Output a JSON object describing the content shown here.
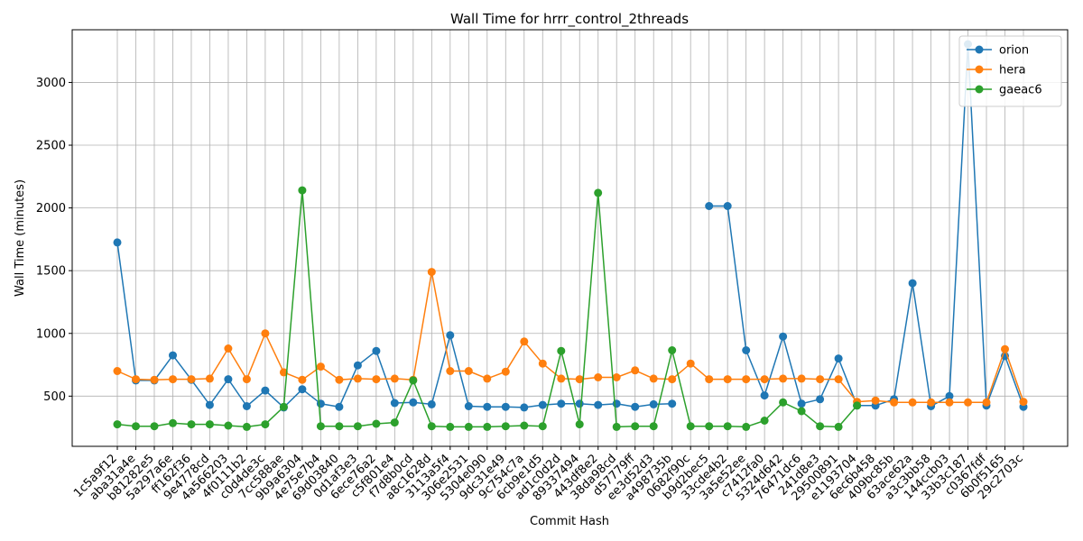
{
  "chart_data": {
    "type": "line",
    "title": "Wall Time for hrrr_control_2threads",
    "xlabel": "Commit Hash",
    "ylabel": "Wall Time (minutes)",
    "ylim": [
      100,
      3420
    ],
    "yticks": [
      500,
      1000,
      1500,
      2000,
      2500,
      3000
    ],
    "grid": true,
    "legend_position": "top-right",
    "categories": [
      "1c5a9f12",
      "aba31a4e",
      "b81282e5",
      "5a297a6e",
      "ff162f36",
      "9e4778cd",
      "4a566203",
      "4f0111b2",
      "c0d4de3c",
      "7cc588ae",
      "9b9a6304",
      "4e75e7b4",
      "69d03840",
      "0d1af3e3",
      "6ece76a2",
      "c5f801e4",
      "f7d8b0cd",
      "a8c1628d",
      "3113a5f4",
      "306e2531",
      "5304e090",
      "9dc31e49",
      "9c754c7a",
      "6cb9e1d5",
      "ad1c0d2d",
      "89337494",
      "443df8e2",
      "38da98cd",
      "d57779ff",
      "ee3d52d3",
      "a498735b",
      "0682f90c",
      "b9d2bec5",
      "33cde4b2",
      "3a5e52ee",
      "c7412fa0",
      "5324d642",
      "76471dc6",
      "241d8e3",
      "29500891",
      "e1193704",
      "6ec6b458",
      "409bc85b",
      "63ace62a",
      "a3c3bb58",
      "144ccb03",
      "33b3c187",
      "c0367fdf",
      "6b0f5165",
      "29c2703c"
    ],
    "series": [
      {
        "name": "orion",
        "color": "#1f77b4",
        "values": [
          1725,
          625,
          625,
          825,
          630,
          430,
          635,
          420,
          545,
          410,
          555,
          440,
          415,
          745,
          860,
          445,
          450,
          435,
          985,
          420,
          415,
          415,
          410,
          430,
          440,
          440,
          430,
          440,
          415,
          435,
          440,
          null,
          2015,
          2015,
          865,
          505,
          975,
          440,
          475,
          800,
          425,
          425,
          475,
          1400,
          420,
          500,
          3305,
          425,
          820,
          415
        ]
      },
      {
        "name": "hera",
        "color": "#ff7f0e",
        "values": [
          700,
          635,
          630,
          635,
          635,
          640,
          880,
          635,
          1000,
          690,
          630,
          735,
          630,
          640,
          635,
          640,
          630,
          1490,
          700,
          700,
          640,
          695,
          935,
          760,
          640,
          635,
          650,
          650,
          705,
          640,
          635,
          760,
          635,
          635,
          635,
          635,
          640,
          640,
          635,
          635,
          455,
          465,
          450,
          450,
          450,
          450,
          450,
          450,
          875,
          455
        ]
      },
      {
        "name": "gaeac6",
        "color": "#2ca02c",
        "values": [
          275,
          260,
          260,
          285,
          275,
          275,
          265,
          255,
          275,
          415,
          2140,
          260,
          260,
          260,
          280,
          290,
          625,
          260,
          255,
          255,
          255,
          260,
          265,
          260,
          860,
          275,
          2120,
          255,
          260,
          260,
          865,
          260,
          260,
          260,
          255,
          305,
          450,
          380,
          260,
          255,
          425,
          null,
          null,
          null,
          null,
          null,
          null,
          null,
          null,
          null
        ]
      }
    ]
  }
}
